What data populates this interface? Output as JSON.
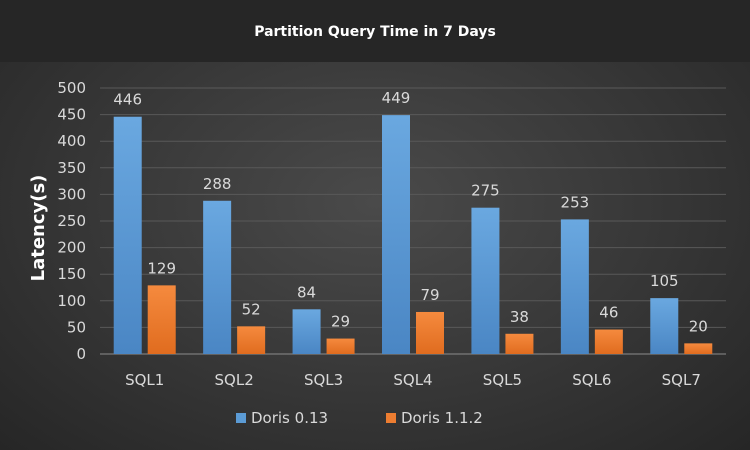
{
  "chart_data": {
    "type": "bar",
    "title": "Partition Query Time in 7 Days",
    "xlabel": "",
    "ylabel": "Latency(s)",
    "categories": [
      "SQL1",
      "SQL2",
      "SQL3",
      "SQL4",
      "SQL5",
      "SQL6",
      "SQL7"
    ],
    "series": [
      {
        "name": "Doris 0.13",
        "color": "#5b9bd5",
        "values": [
          446,
          288,
          84,
          449,
          275,
          253,
          105
        ]
      },
      {
        "name": "Doris 1.1.2",
        "color": "#ed7d31",
        "values": [
          129,
          52,
          29,
          79,
          38,
          46,
          20
        ]
      }
    ],
    "ylim": [
      0,
      500
    ],
    "yticks": [
      0,
      50,
      100,
      150,
      200,
      250,
      300,
      350,
      400,
      450,
      500
    ],
    "grid": true,
    "legend_position": "bottom",
    "data_labels": true
  }
}
